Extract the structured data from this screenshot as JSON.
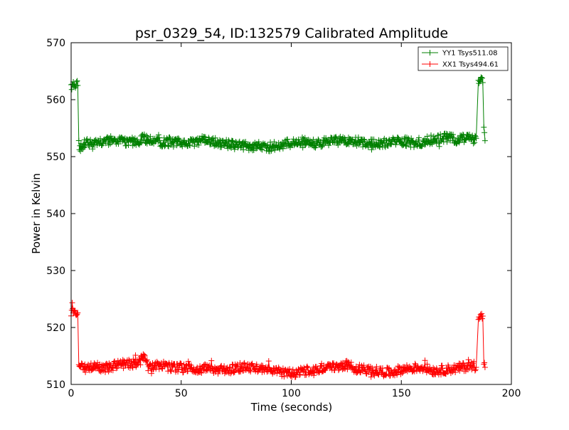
{
  "chart_data": {
    "type": "line",
    "title": "psr_0329_54, ID:132579 Calibrated Amplitude",
    "xlabel": "Time (seconds)",
    "ylabel": "Power in Kelvin",
    "xlim": [
      0,
      200
    ],
    "ylim": [
      510,
      570
    ],
    "xticks": [
      0,
      50,
      100,
      150,
      200
    ],
    "yticks": [
      510,
      520,
      530,
      540,
      550,
      560,
      570
    ],
    "grid": false,
    "legend_position": "top-right",
    "marker": "+",
    "series": [
      {
        "name": "YY1 Tsys511.08",
        "color": "#008000",
        "x": [
          0,
          1.5,
          3,
          3.5,
          4,
          5,
          6,
          8,
          10,
          15,
          20,
          25,
          30,
          33,
          35,
          40,
          45,
          50,
          55,
          60,
          65,
          70,
          75,
          80,
          85,
          90,
          95,
          100,
          105,
          110,
          115,
          120,
          125,
          130,
          135,
          140,
          145,
          150,
          155,
          160,
          165,
          170,
          175,
          180,
          183,
          184,
          185,
          186,
          187,
          187.5,
          188
        ],
        "y": [
          562.2,
          562.8,
          562.5,
          552.5,
          551.5,
          551.8,
          552.2,
          552.4,
          552.1,
          552.6,
          552.8,
          552.5,
          552.7,
          553.2,
          552.9,
          552.4,
          552.6,
          552.3,
          552.5,
          552.9,
          552.6,
          552.2,
          552.0,
          551.8,
          551.9,
          551.7,
          552.0,
          552.4,
          552.6,
          552.3,
          552.5,
          552.7,
          552.9,
          552.6,
          552.4,
          552.3,
          552.5,
          552.8,
          552.4,
          552.6,
          553.1,
          553.3,
          553.0,
          553.4,
          553.0,
          553.2,
          563.5,
          563.2,
          563.0,
          555.0,
          552.8
        ]
      },
      {
        "name": "XX1 Tsys494.61",
        "color": "#ff0000",
        "x": [
          0,
          1.5,
          3,
          3.5,
          4,
          5,
          6,
          8,
          10,
          15,
          20,
          25,
          30,
          33,
          35,
          40,
          45,
          50,
          55,
          60,
          65,
          70,
          75,
          80,
          85,
          90,
          95,
          100,
          105,
          110,
          115,
          120,
          125,
          130,
          135,
          140,
          145,
          150,
          155,
          160,
          165,
          170,
          175,
          180,
          183,
          184,
          185,
          186,
          187,
          187.5,
          188
        ],
        "y": [
          522.8,
          523.2,
          522.6,
          513.5,
          512.9,
          513.1,
          512.7,
          513.0,
          513.2,
          512.9,
          513.3,
          513.6,
          513.8,
          514.6,
          513.2,
          513.4,
          513.0,
          512.9,
          512.7,
          512.8,
          512.6,
          512.5,
          512.9,
          513.1,
          512.8,
          512.4,
          512.2,
          511.9,
          512.3,
          512.7,
          513.0,
          513.1,
          513.4,
          512.8,
          512.5,
          512.3,
          512.1,
          512.6,
          512.9,
          513.0,
          512.4,
          512.6,
          512.8,
          513.2,
          513.4,
          513.0,
          522.2,
          521.8,
          522.0,
          514.0,
          513.0
        ]
      }
    ]
  }
}
